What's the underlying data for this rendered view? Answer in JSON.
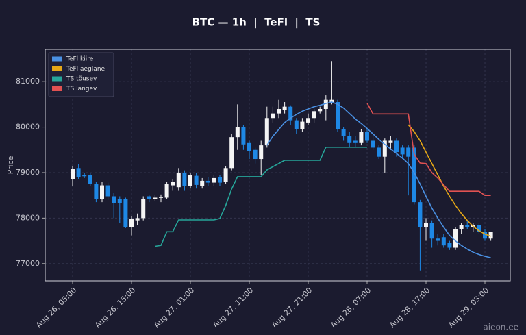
{
  "chart_data": {
    "type": "candlestick",
    "title": "BTC — 1h  |  TeFl  |  TS",
    "y_label": "Price",
    "watermark": "aieon.ee",
    "x": [
      "Aug 26, 05:00",
      "Aug 26, 06:00",
      "Aug 26, 07:00",
      "Aug 26, 08:00",
      "Aug 26, 09:00",
      "Aug 26, 10:00",
      "Aug 26, 11:00",
      "Aug 26, 12:00",
      "Aug 26, 13:00",
      "Aug 26, 14:00",
      "Aug 26, 15:00",
      "Aug 26, 16:00",
      "Aug 26, 17:00",
      "Aug 26, 18:00",
      "Aug 26, 19:00",
      "Aug 26, 20:00",
      "Aug 26, 21:00",
      "Aug 26, 22:00",
      "Aug 26, 23:00",
      "Aug 27, 00:00",
      "Aug 27, 01:00",
      "Aug 27, 02:00",
      "Aug 27, 03:00",
      "Aug 27, 04:00",
      "Aug 27, 05:00",
      "Aug 27, 06:00",
      "Aug 27, 07:00",
      "Aug 27, 08:00",
      "Aug 27, 09:00",
      "Aug 27, 10:00",
      "Aug 27, 11:00",
      "Aug 27, 12:00",
      "Aug 27, 13:00",
      "Aug 27, 14:00",
      "Aug 27, 15:00",
      "Aug 27, 16:00",
      "Aug 27, 17:00",
      "Aug 27, 18:00",
      "Aug 27, 19:00",
      "Aug 27, 20:00",
      "Aug 27, 21:00",
      "Aug 27, 22:00",
      "Aug 27, 23:00",
      "Aug 28, 00:00",
      "Aug 28, 01:00",
      "Aug 28, 02:00",
      "Aug 28, 03:00",
      "Aug 28, 04:00",
      "Aug 28, 05:00",
      "Aug 28, 06:00",
      "Aug 28, 07:00",
      "Aug 28, 08:00",
      "Aug 28, 09:00",
      "Aug 28, 10:00",
      "Aug 28, 11:00",
      "Aug 28, 12:00",
      "Aug 28, 13:00",
      "Aug 28, 14:00",
      "Aug 28, 15:00",
      "Aug 28, 16:00",
      "Aug 28, 17:00",
      "Aug 28, 18:00",
      "Aug 28, 19:00",
      "Aug 28, 20:00",
      "Aug 28, 21:00",
      "Aug 28, 22:00",
      "Aug 28, 23:00",
      "Aug 29, 00:00",
      "Aug 29, 01:00",
      "Aug 29, 02:00",
      "Aug 29, 03:00",
      "Aug 29, 04:00"
    ],
    "open": [
      78850,
      79100,
      78950,
      78950,
      78750,
      78420,
      78720,
      78480,
      78420,
      78420,
      77800,
      77950,
      78000,
      78480,
      78420,
      78450,
      78450,
      78720,
      78680,
      79000,
      78700,
      78930,
      78700,
      78820,
      78780,
      78900,
      78800,
      79100,
      79780,
      80000,
      79650,
      79500,
      79300,
      79600,
      80200,
      80300,
      80380,
      80450,
      80150,
      79950,
      80100,
      80200,
      80350,
      80400,
      80550,
      80550,
      79950,
      79800,
      79700,
      79650,
      79900,
      79700,
      79550,
      79350,
      79650,
      79700,
      79550,
      79550,
      79550,
      78350,
      77800,
      77900,
      77550,
      77580,
      77450,
      77350,
      77750,
      77850,
      77800,
      77850,
      77700,
      77550
    ],
    "high": [
      79150,
      79180,
      79000,
      79000,
      78800,
      78800,
      78780,
      78550,
      78480,
      78450,
      78050,
      78100,
      78480,
      78500,
      78500,
      78520,
      78800,
      78850,
      79100,
      79050,
      79000,
      79000,
      78880,
      78900,
      78950,
      78950,
      79150,
      79850,
      80500,
      80050,
      79700,
      79550,
      79700,
      80450,
      80450,
      80600,
      80550,
      80480,
      80200,
      80200,
      80300,
      80400,
      80450,
      80700,
      81450,
      80600,
      80000,
      79900,
      79800,
      79950,
      79950,
      79800,
      79600,
      79750,
      79800,
      79750,
      79600,
      79600,
      79600,
      78400,
      78000,
      77950,
      77650,
      77650,
      77500,
      77800,
      77900,
      77950,
      77900,
      77900,
      77750,
      77700
    ],
    "low": [
      78700,
      78850,
      78880,
      78700,
      78350,
      78350,
      78400,
      78000,
      77900,
      77780,
      77620,
      77850,
      77950,
      78350,
      78380,
      78350,
      78420,
      78600,
      78600,
      78600,
      78650,
      78650,
      78650,
      78700,
      78700,
      78700,
      78750,
      79050,
      79500,
      79500,
      79300,
      79200,
      78950,
      79550,
      80100,
      80200,
      80300,
      80050,
      79850,
      79900,
      80050,
      80100,
      80300,
      80150,
      80500,
      79900,
      79700,
      79550,
      79550,
      79600,
      79650,
      79500,
      79300,
      79000,
      79500,
      79350,
      79300,
      78500,
      78300,
      76850,
      77500,
      77350,
      77400,
      77350,
      77300,
      77300,
      77650,
      77750,
      77700,
      77650,
      77500,
      77500
    ],
    "close": [
      79080,
      78900,
      78920,
      78750,
      78420,
      78720,
      78480,
      78330,
      78330,
      77800,
      77980,
      78000,
      78420,
      78420,
      78450,
      78460,
      78750,
      78800,
      79000,
      78700,
      78950,
      78730,
      78820,
      78780,
      78880,
      78780,
      79100,
      79780,
      80000,
      79620,
      79480,
      79300,
      79600,
      80200,
      80300,
      80400,
      80450,
      80150,
      79950,
      80120,
      80200,
      80350,
      80400,
      80600,
      80600,
      79950,
      79800,
      79650,
      79650,
      79900,
      79700,
      79550,
      79350,
      79700,
      79700,
      79450,
      79400,
      79350,
      78350,
      77800,
      77900,
      77550,
      77500,
      77400,
      77350,
      77750,
      77850,
      77800,
      77850,
      77700,
      77550,
      77700
    ],
    "up_color": "#f4f4f4",
    "down_color": "#1e88e5",
    "series": [
      {
        "name": "TeFl kiire",
        "color": "#4a90e2",
        "values": [
          null,
          null,
          null,
          null,
          null,
          null,
          null,
          null,
          null,
          null,
          null,
          null,
          null,
          null,
          null,
          null,
          null,
          null,
          null,
          null,
          null,
          null,
          null,
          null,
          null,
          null,
          null,
          null,
          null,
          null,
          null,
          null,
          null,
          79600,
          79800,
          79950,
          80100,
          80200,
          80280,
          80350,
          80400,
          80450,
          80480,
          80520,
          80550,
          80500,
          80420,
          80300,
          80180,
          80080,
          79970,
          79850,
          79730,
          79620,
          79520,
          79420,
          79320,
          79200,
          79000,
          78750,
          78480,
          78220,
          78000,
          77800,
          77620,
          77500,
          77400,
          77320,
          77250,
          77200,
          77160,
          77130
        ]
      },
      {
        "name": "TeFl aeglane",
        "color": "#e6a817",
        "values": [
          null,
          null,
          null,
          null,
          null,
          null,
          null,
          null,
          null,
          null,
          null,
          null,
          null,
          null,
          null,
          null,
          null,
          null,
          null,
          null,
          null,
          null,
          null,
          null,
          null,
          null,
          null,
          null,
          null,
          null,
          null,
          null,
          null,
          null,
          null,
          null,
          null,
          null,
          null,
          null,
          null,
          null,
          null,
          null,
          null,
          null,
          null,
          null,
          null,
          null,
          null,
          null,
          null,
          null,
          null,
          null,
          null,
          80050,
          79900,
          79700,
          79450,
          79200,
          78950,
          78700,
          78480,
          78280,
          78100,
          77950,
          77820,
          77720,
          77650,
          77600
        ]
      },
      {
        "name": "TS tõusev",
        "color": "#26a69a",
        "values": [
          null,
          null,
          null,
          null,
          null,
          null,
          null,
          null,
          null,
          null,
          null,
          null,
          null,
          null,
          77380,
          77400,
          77700,
          77700,
          77960,
          77960,
          77960,
          77960,
          77960,
          77960,
          77960,
          77990,
          78280,
          78640,
          78910,
          78910,
          78910,
          78910,
          78910,
          79060,
          79130,
          79200,
          79270,
          79270,
          79270,
          79270,
          79270,
          79270,
          79270,
          79560,
          79560,
          79560,
          79560,
          79560,
          79560,
          79560,
          79560,
          null,
          null,
          null,
          null,
          null,
          null,
          null,
          null,
          null,
          null,
          null,
          null,
          null,
          null,
          null,
          null,
          null,
          null,
          null,
          null,
          null
        ]
      },
      {
        "name": "TS langev",
        "color": "#e05252",
        "values": [
          null,
          null,
          null,
          null,
          null,
          null,
          null,
          null,
          null,
          null,
          null,
          null,
          null,
          null,
          null,
          null,
          null,
          null,
          null,
          null,
          null,
          null,
          null,
          null,
          null,
          null,
          null,
          null,
          null,
          null,
          null,
          null,
          null,
          null,
          null,
          null,
          null,
          null,
          null,
          null,
          null,
          null,
          null,
          null,
          null,
          null,
          null,
          null,
          null,
          null,
          80530,
          80290,
          80290,
          80290,
          80290,
          80290,
          80290,
          80290,
          79400,
          79210,
          79200,
          79000,
          78880,
          78730,
          78590,
          78590,
          78590,
          78590,
          78590,
          78590,
          78500,
          78500
        ]
      }
    ],
    "ylim": [
      76620,
      81710
    ],
    "yticks": [
      77000,
      78000,
      79000,
      80000,
      81000
    ],
    "xticks": [
      "Aug 26, 05:00",
      "Aug 26, 15:00",
      "Aug 27, 01:00",
      "Aug 27, 11:00",
      "Aug 27, 21:00",
      "Aug 28, 07:00",
      "Aug 28, 17:00",
      "Aug 29, 03:00"
    ],
    "grid": true,
    "legend": "upper left"
  }
}
